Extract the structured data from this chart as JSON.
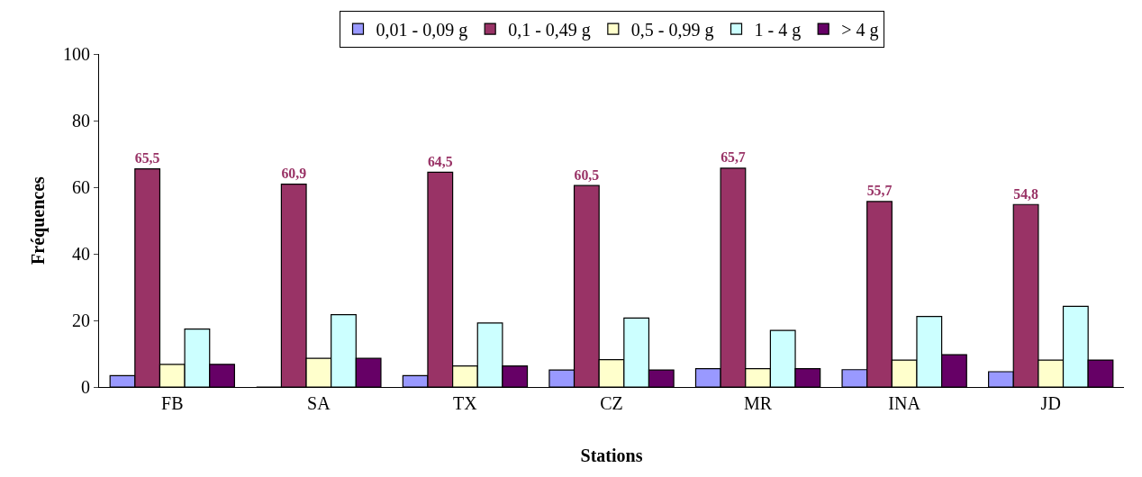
{
  "chart_data": {
    "type": "bar",
    "xlabel": "Stations",
    "ylabel": "Fréquences",
    "categories": [
      "FB",
      "SA",
      "TX",
      "CZ",
      "MR",
      "INA",
      "JD"
    ],
    "series": [
      {
        "name": "0,01 - 0,09 g",
        "color": "#9999ff",
        "values": [
          3.4,
          0,
          3.4,
          5.1,
          5.5,
          5.2,
          4.6
        ]
      },
      {
        "name": "0,1 - 0,49 g",
        "color": "#993366",
        "values": [
          65.5,
          60.9,
          64.5,
          60.5,
          65.7,
          55.7,
          54.8
        ],
        "value_labels": [
          "65,5",
          "60,9",
          "64,5",
          "60,5",
          "65,7",
          "55,7",
          "54,8"
        ]
      },
      {
        "name": "0,5 - 0,99 g",
        "color": "#ffffcc",
        "values": [
          6.8,
          8.6,
          6.3,
          8.2,
          5.5,
          8.1,
          8.1
        ]
      },
      {
        "name": "1 - 4 g",
        "color": "#ccffff",
        "values": [
          17.4,
          21.7,
          19.2,
          20.7,
          17.0,
          21.2,
          24.2
        ]
      },
      {
        "name": "> 4 g",
        "color": "#660066",
        "values": [
          6.8,
          8.6,
          6.3,
          5.1,
          5.5,
          9.7,
          8.1
        ]
      }
    ],
    "ylim": [
      0,
      100
    ],
    "yticks": [
      0,
      20,
      40,
      60,
      80,
      100
    ],
    "legend": "top"
  }
}
